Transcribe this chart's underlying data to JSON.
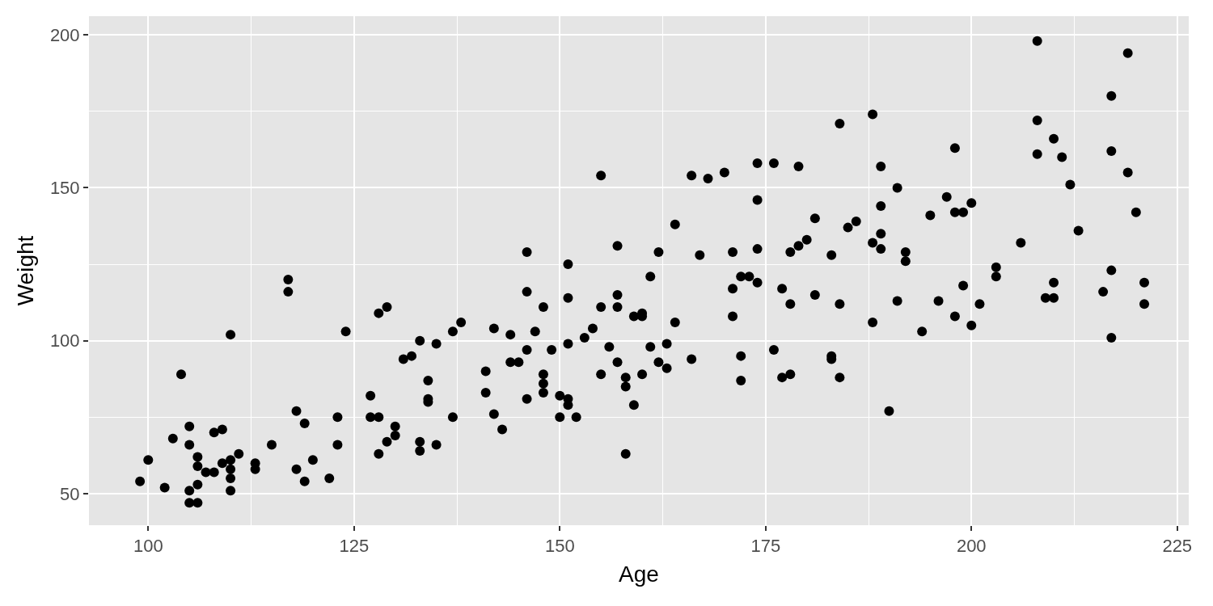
{
  "chart_data": {
    "type": "scatter",
    "xlabel": "Age",
    "ylabel": "Weight",
    "xlim": [
      92.8,
      226.4
    ],
    "ylim": [
      39.7,
      206.1
    ],
    "xticks": [
      100,
      125,
      150,
      175,
      200,
      225
    ],
    "yticks": [
      50,
      100,
      150,
      200
    ],
    "grid": true,
    "marker": "circle",
    "x": [
      99,
      100,
      102,
      103,
      104,
      105,
      105,
      105,
      105,
      106,
      106,
      106,
      106,
      107,
      108,
      108,
      109,
      109,
      110,
      110,
      110,
      110,
      110,
      111,
      113,
      113,
      115,
      117,
      117,
      118,
      118,
      119,
      119,
      120,
      122,
      123,
      123,
      124,
      127,
      127,
      128,
      128,
      128,
      129,
      129,
      130,
      130,
      131,
      132,
      133,
      133,
      133,
      134,
      134,
      134,
      135,
      135,
      137,
      137,
      138,
      141,
      141,
      142,
      142,
      143,
      144,
      144,
      145,
      146,
      146,
      146,
      146,
      147,
      148,
      148,
      148,
      148,
      149,
      150,
      150,
      151,
      151,
      151,
      151,
      151,
      152,
      153,
      154,
      155,
      155,
      155,
      156,
      157,
      157,
      157,
      157,
      158,
      158,
      158,
      159,
      159,
      160,
      160,
      160,
      161,
      161,
      162,
      162,
      163,
      163,
      164,
      164,
      166,
      166,
      167,
      168,
      170,
      171,
      171,
      171,
      172,
      172,
      172,
      173,
      174,
      174,
      174,
      174,
      176,
      176,
      177,
      177,
      178,
      178,
      178,
      179,
      179,
      180,
      181,
      181,
      183,
      183,
      183,
      184,
      184,
      184,
      185,
      186,
      188,
      188,
      188,
      189,
      189,
      189,
      189,
      190,
      191,
      191,
      192,
      192,
      194,
      195,
      196,
      197,
      198,
      198,
      198,
      199,
      199,
      200,
      200,
      201,
      203,
      203,
      206,
      208,
      208,
      208,
      209,
      210,
      210,
      210,
      211,
      212,
      213,
      216,
      217,
      217,
      217,
      217,
      219,
      219,
      220,
      221,
      221
    ],
    "series": [
      {
        "color": "#000000",
        "values": [
          54,
          61,
          52,
          68,
          89,
          72,
          66,
          51,
          47,
          47,
          53,
          59,
          62,
          57,
          70,
          57,
          71,
          60,
          61,
          58,
          55,
          51,
          102,
          63,
          60,
          58,
          66,
          120,
          116,
          77,
          58,
          73,
          54,
          61,
          55,
          75,
          66,
          103,
          82,
          75,
          75,
          63,
          109,
          111,
          67,
          72,
          69,
          94,
          95,
          100,
          67,
          64,
          87,
          81,
          80,
          99,
          66,
          103,
          75,
          106,
          90,
          83,
          104,
          76,
          71,
          102,
          93,
          93,
          129,
          116,
          97,
          81,
          103,
          111,
          89,
          86,
          83,
          97,
          82,
          75,
          81,
          79,
          99,
          114,
          125,
          75,
          101,
          104,
          154,
          111,
          89,
          98,
          131,
          115,
          111,
          93,
          88,
          85,
          63,
          108,
          79,
          109,
          108,
          89,
          121,
          98,
          129,
          93,
          99,
          91,
          138,
          106,
          154,
          94,
          128,
          153,
          155,
          129,
          117,
          108,
          121,
          95,
          87,
          121,
          158,
          146,
          130,
          119,
          158,
          97,
          117,
          88,
          129,
          112,
          89,
          131,
          157,
          133,
          140,
          115,
          128,
          95,
          94,
          171,
          112,
          88,
          137,
          139,
          174,
          132,
          106,
          157,
          144,
          135,
          130,
          77,
          150,
          113,
          129,
          126,
          103,
          141,
          113,
          147,
          163,
          142,
          108,
          142,
          118,
          145,
          105,
          112,
          124,
          121,
          132,
          198,
          172,
          161,
          114,
          166,
          119,
          114,
          160,
          151,
          136,
          116,
          180,
          162,
          123,
          101,
          194,
          155,
          142,
          119,
          112
        ]
      }
    ]
  }
}
